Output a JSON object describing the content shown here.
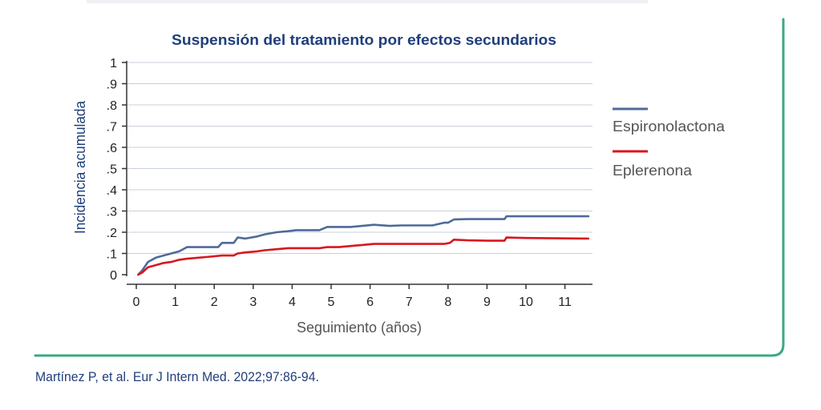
{
  "citation": "Martínez P, et al. Eur J Intern Med. 2022;97:86-94.",
  "colors": {
    "frame": "#3aaa7e",
    "text_dark": "#1f3f7a",
    "axis_title": "#1f3f7a",
    "xlabel": "#555555"
  },
  "chart_data": {
    "type": "line",
    "title": "Suspensión del tratamiento por efectos secundarios",
    "xlabel": "Seguimiento (años)",
    "ylabel": "Incidencia acumulada",
    "xlim": [
      0,
      11.7
    ],
    "ylim": [
      0,
      1
    ],
    "grid": true,
    "legend_position": "right",
    "x_ticks": [
      0,
      1,
      2,
      3,
      4,
      5,
      6,
      7,
      8,
      9,
      10,
      11
    ],
    "x_tick_labels": [
      "0",
      "1",
      "2",
      "3",
      "4",
      "5",
      "6",
      "7",
      "8",
      "9",
      "10",
      "11"
    ],
    "y_ticks": [
      0,
      0.1,
      0.2,
      0.3,
      0.4,
      0.5,
      0.6,
      0.7,
      0.8,
      0.9,
      1
    ],
    "y_tick_labels": [
      "0",
      ".1",
      ".2",
      ".3",
      ".4",
      ".5",
      ".6",
      ".7",
      ".8",
      ".9",
      "1"
    ],
    "series": [
      {
        "name": "Espironolactona",
        "color": "#4f6a9a",
        "x": [
          0.05,
          0.15,
          0.3,
          0.5,
          0.7,
          0.9,
          1.1,
          1.3,
          1.6,
          1.9,
          2.1,
          2.2,
          2.5,
          2.6,
          2.8,
          3.1,
          3.3,
          3.6,
          3.9,
          4.1,
          4.4,
          4.7,
          4.9,
          5.2,
          5.5,
          5.8,
          6.1,
          6.5,
          6.8,
          7.2,
          7.6,
          7.9,
          8.0,
          8.15,
          8.5,
          9.0,
          9.45,
          9.5,
          10.0,
          11.6
        ],
        "y": [
          0.0,
          0.02,
          0.06,
          0.08,
          0.09,
          0.1,
          0.11,
          0.13,
          0.13,
          0.13,
          0.13,
          0.15,
          0.15,
          0.175,
          0.17,
          0.18,
          0.19,
          0.2,
          0.205,
          0.21,
          0.21,
          0.21,
          0.225,
          0.225,
          0.225,
          0.23,
          0.235,
          0.23,
          0.232,
          0.232,
          0.232,
          0.245,
          0.245,
          0.26,
          0.262,
          0.262,
          0.262,
          0.275,
          0.275,
          0.275
        ]
      },
      {
        "name": "Eplerenona",
        "color": "#d9161e",
        "x": [
          0.05,
          0.15,
          0.3,
          0.5,
          0.7,
          0.9,
          1.1,
          1.3,
          1.6,
          1.9,
          2.2,
          2.5,
          2.6,
          2.8,
          3.1,
          3.3,
          3.6,
          3.9,
          4.1,
          4.4,
          4.7,
          4.9,
          5.2,
          5.5,
          5.8,
          6.1,
          6.5,
          6.8,
          7.2,
          7.6,
          7.9,
          8.05,
          8.15,
          8.5,
          9.0,
          9.45,
          9.5,
          10.0,
          11.6
        ],
        "y": [
          0.0,
          0.01,
          0.035,
          0.045,
          0.055,
          0.06,
          0.07,
          0.075,
          0.08,
          0.085,
          0.09,
          0.09,
          0.1,
          0.105,
          0.11,
          0.115,
          0.12,
          0.125,
          0.125,
          0.125,
          0.125,
          0.13,
          0.13,
          0.135,
          0.14,
          0.145,
          0.145,
          0.145,
          0.145,
          0.145,
          0.145,
          0.15,
          0.165,
          0.162,
          0.16,
          0.16,
          0.175,
          0.173,
          0.17
        ]
      }
    ]
  }
}
